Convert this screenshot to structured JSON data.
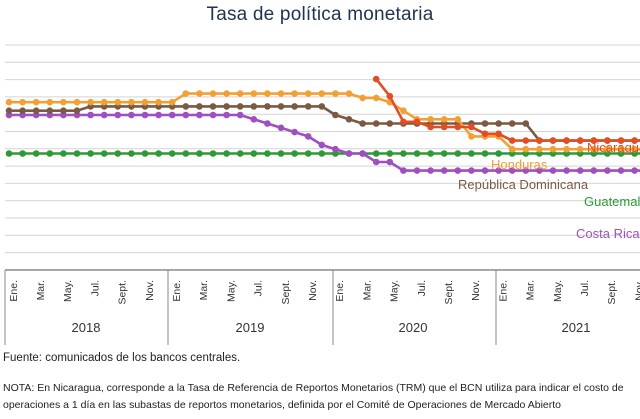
{
  "chart_data": {
    "type": "line",
    "title": "Tasa de política monetaria",
    "tick_labels": [
      "Ene.",
      "Mar.",
      "May.",
      "Jul.",
      "Sept.",
      "Nov.",
      "Ene.",
      "Mar.",
      "May.",
      "Jul.",
      "Sept.",
      "Nov.",
      "Ene.",
      "Mar.",
      "May.",
      "Jul.",
      "Sept.",
      "Nov.",
      "Ene.",
      "Mar.",
      "May.",
      "Jul.",
      "Sept.",
      "Nov."
    ],
    "years": [
      "2018",
      "2019",
      "2020",
      "2021"
    ],
    "grid": true,
    "series": [
      {
        "name": "Nicaragua",
        "color": "#e04e26",
        "label_text": "Nicaragua",
        "start": 27,
        "values": [
          7.1,
          6.1,
          4.6,
          4.6,
          4.3,
          4.3,
          4.3,
          4.3,
          3.9,
          3.9,
          3.5,
          3.5,
          3.5,
          3.5,
          3.5,
          3.5,
          3.5,
          3.5,
          3.5,
          3.5,
          3.5
        ]
      },
      {
        "name": "Honduras",
        "color": "#f2a033",
        "label_text": "Honduras",
        "start": 0,
        "values": [
          5.75,
          5.75,
          5.75,
          5.75,
          5.75,
          5.75,
          5.75,
          5.75,
          5.75,
          5.75,
          5.75,
          5.75,
          5.75,
          6.25,
          6.25,
          6.25,
          6.25,
          6.25,
          6.25,
          6.25,
          6.25,
          6.25,
          6.25,
          6.25,
          6.25,
          6.25,
          6.0,
          6.0,
          5.75,
          5.25,
          4.75,
          4.75,
          4.75,
          4.75,
          3.75,
          3.75,
          3.75,
          3.0,
          3.0,
          3.0,
          3.0,
          3.0,
          3.0,
          3.0,
          3.0,
          3.0,
          3.0,
          3.0,
          3.0
        ]
      },
      {
        "name": "República Dominicana",
        "color": "#7a5a43",
        "label_text": "República Dominicana",
        "start": 0,
        "values": [
          5.25,
          5.25,
          5.25,
          5.25,
          5.25,
          5.25,
          5.5,
          5.5,
          5.5,
          5.5,
          5.5,
          5.5,
          5.5,
          5.5,
          5.5,
          5.5,
          5.5,
          5.5,
          5.5,
          5.5,
          5.5,
          5.5,
          5.5,
          5.5,
          5.0,
          4.75,
          4.5,
          4.5,
          4.5,
          4.5,
          4.5,
          4.5,
          4.5,
          4.5,
          4.5,
          4.5,
          4.5,
          4.5,
          4.5,
          3.5,
          3.5,
          3.5,
          3.5,
          3.5,
          3.5,
          3.5,
          3.5,
          3.5,
          3.5
        ]
      },
      {
        "name": "Guatemala",
        "color": "#2e9a35",
        "label_text": "Guatemala",
        "start": 0,
        "values": [
          2.75,
          2.75,
          2.75,
          2.75,
          2.75,
          2.75,
          2.75,
          2.75,
          2.75,
          2.75,
          2.75,
          2.75,
          2.75,
          2.75,
          2.75,
          2.75,
          2.75,
          2.75,
          2.75,
          2.75,
          2.75,
          2.75,
          2.75,
          2.75,
          2.75,
          2.75,
          2.75,
          2.75,
          2.75,
          2.75,
          2.75,
          2.75,
          2.75,
          2.75,
          2.75,
          2.75,
          2.75,
          2.75,
          2.75,
          2.75,
          2.75,
          2.75,
          2.75,
          2.75,
          2.75,
          2.75,
          2.75,
          2.75,
          2.75
        ]
      },
      {
        "name": "Costa Rica",
        "color": "#a04fc0",
        "label_text": "Costa Rica",
        "start": 0,
        "values": [
          5.0,
          5.0,
          5.0,
          5.0,
          5.0,
          5.0,
          5.0,
          5.0,
          5.0,
          5.0,
          5.0,
          5.0,
          5.0,
          5.0,
          5.0,
          5.0,
          5.0,
          5.0,
          4.75,
          4.5,
          4.25,
          4.0,
          3.75,
          3.25,
          3.0,
          2.75,
          2.75,
          2.25,
          2.25,
          1.75,
          1.75,
          1.75,
          1.75,
          1.75,
          1.75,
          1.75,
          1.75,
          1.75,
          1.75,
          1.75,
          1.75,
          1.75,
          1.75,
          1.75,
          1.75,
          1.75,
          1.75,
          1.75,
          1.75
        ]
      }
    ]
  },
  "footer": {
    "source": "Fuente: comunicados de los bancos centrales.",
    "note": "NOTA: En Nicaragua, corresponde a la Tasa de Referencia de Reportos Monetarios (TRM) que el BCN utiliza para indicar el costo de operaciones a 1 día en las subastas de reportos monetarios, definida por el Comité de Operaciones de Mercado Abierto"
  }
}
